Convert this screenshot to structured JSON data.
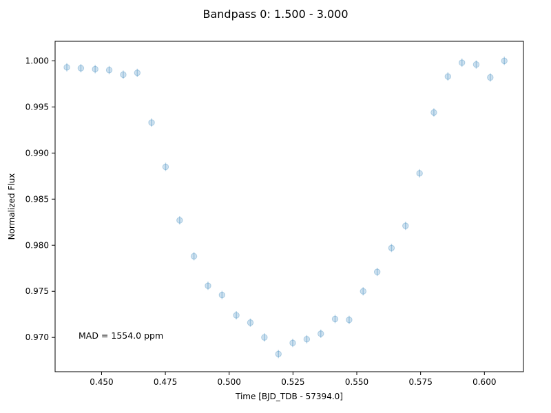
{
  "chart_data": {
    "type": "scatter",
    "title": "Bandpass 0: 1.500 - 3.000",
    "xlabel": "Time [BJD_TDB - 57394.0]",
    "ylabel": "Normalized Flux",
    "xlim": [
      0.4318,
      0.6153
    ],
    "ylim": [
      0.96628,
      1.00212
    ],
    "xticks": [
      0.45,
      0.475,
      0.5,
      0.525,
      0.55,
      0.575,
      0.6
    ],
    "xtick_labels": [
      "0.450",
      "0.475",
      "0.500",
      "0.525",
      "0.550",
      "0.575",
      "0.600"
    ],
    "yticks": [
      0.97,
      0.975,
      0.98,
      0.985,
      0.99,
      0.995,
      1.0
    ],
    "ytick_labels": [
      "0.970",
      "0.975",
      "0.980",
      "0.985",
      "0.990",
      "0.995",
      "1.000"
    ],
    "annotation": "MAD = 1554.0 ppm",
    "marker_color": "#1f77b4",
    "grid": false,
    "series": [
      {
        "x": [
          0.4364,
          0.4419,
          0.4475,
          0.453,
          0.4585,
          0.464,
          0.4696,
          0.4751,
          0.4806,
          0.4862,
          0.4917,
          0.4972,
          0.5028,
          0.5083,
          0.5138,
          0.5193,
          0.5249,
          0.5304,
          0.5359,
          0.5415,
          0.547,
          0.5525,
          0.558,
          0.5636,
          0.5691,
          0.5746,
          0.5802,
          0.5857,
          0.5912,
          0.5968,
          0.6023,
          0.6078
        ],
        "y": [
          0.9993,
          0.9992,
          0.9991,
          0.999,
          0.9985,
          0.9987,
          0.9933,
          0.9885,
          0.9827,
          0.9788,
          0.9756,
          0.9746,
          0.9724,
          0.9716,
          0.97,
          0.9682,
          0.9694,
          0.9698,
          0.9704,
          0.972,
          0.9719,
          0.975,
          0.9771,
          0.9797,
          0.9821,
          0.9878,
          0.9944,
          0.9983,
          0.9998,
          0.9996,
          0.9982,
          1.0
        ],
        "yerr": [
          0.00045,
          0.00045,
          0.00045,
          0.00045,
          0.00045,
          0.00045,
          0.00045,
          0.00045,
          0.00045,
          0.00045,
          0.00045,
          0.00045,
          0.00045,
          0.00045,
          0.00045,
          0.00045,
          0.00045,
          0.00045,
          0.00045,
          0.00045,
          0.00045,
          0.00045,
          0.00045,
          0.00045,
          0.00045,
          0.00045,
          0.00045,
          0.00045,
          0.00045,
          0.00045,
          0.00045,
          0.00045
        ]
      }
    ]
  }
}
